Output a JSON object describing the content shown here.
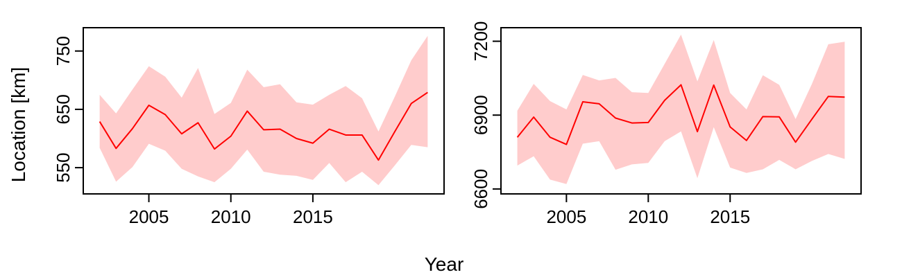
{
  "figure": {
    "xlabel": "Year",
    "ylabel": "Location [km]",
    "colors": {
      "line": "#ff0000",
      "band": "#ffcccc",
      "frame": "#000000"
    }
  },
  "chart_data": [
    {
      "type": "area",
      "title": "",
      "xlabel": "Year",
      "ylabel": "Location [km]",
      "xlim": [
        2001,
        2023
      ],
      "ylim": [
        505,
        790
      ],
      "x_ticks": [
        2005,
        2010,
        2015
      ],
      "y_ticks": [
        550,
        650,
        750
      ],
      "grid": false,
      "legend": "none",
      "x": [
        2002,
        2003,
        2004,
        2005,
        2006,
        2007,
        2008,
        2009,
        2010,
        2011,
        2012,
        2013,
        2014,
        2015,
        2016,
        2017,
        2018,
        2019,
        2020,
        2021,
        2022
      ],
      "series": [
        {
          "values": [
            629,
            583,
            617,
            657,
            641,
            608,
            627,
            582,
            604,
            647,
            615,
            616,
            600,
            592,
            616,
            606,
            606,
            563,
            612,
            660,
            679
          ]
        },
        {
          "values": [
            675,
            643,
            684,
            724,
            706,
            670,
            721,
            642,
            661,
            718,
            688,
            693,
            662,
            658,
            675,
            690,
            669,
            612,
            672,
            734,
            776
          ]
        },
        {
          "values": [
            584,
            526,
            551,
            591,
            579,
            548,
            535,
            525,
            548,
            581,
            543,
            538,
            536,
            529,
            558,
            525,
            543,
            520,
            554,
            589,
            585
          ]
        }
      ]
    },
    {
      "type": "area",
      "title": "",
      "xlabel": "Year",
      "ylabel": "Location [km]",
      "xlim": [
        2001,
        2023
      ],
      "ylim": [
        6580,
        7255
      ],
      "x_ticks": [
        2005,
        2010,
        2015
      ],
      "y_ticks": [
        6600,
        6900,
        7200
      ],
      "grid": false,
      "legend": "none",
      "x": [
        2002,
        2003,
        2004,
        2005,
        2006,
        2007,
        2008,
        2009,
        2010,
        2011,
        2012,
        2013,
        2014,
        2015,
        2016,
        2017,
        2018,
        2019,
        2020,
        2021,
        2022
      ],
      "series": [
        {
          "values": [
            6810,
            6892,
            6810,
            6781,
            6954,
            6946,
            6888,
            6868,
            6870,
            6960,
            7023,
            6833,
            7022,
            6852,
            6797,
            6894,
            6893,
            6790,
            6884,
            6976,
            6973
          ]
        },
        {
          "values": [
            6918,
            7027,
            6957,
            6923,
            7063,
            7041,
            7051,
            6993,
            6990,
            7108,
            7227,
            7037,
            7205,
            6990,
            6923,
            7062,
            7023,
            6884,
            7027,
            7188,
            7198
          ]
        },
        {
          "values": [
            6695,
            6733,
            6638,
            6620,
            6784,
            6794,
            6678,
            6700,
            6706,
            6794,
            6834,
            6644,
            6851,
            6687,
            6665,
            6680,
            6718,
            6680,
            6714,
            6742,
            6722
          ]
        }
      ]
    }
  ]
}
